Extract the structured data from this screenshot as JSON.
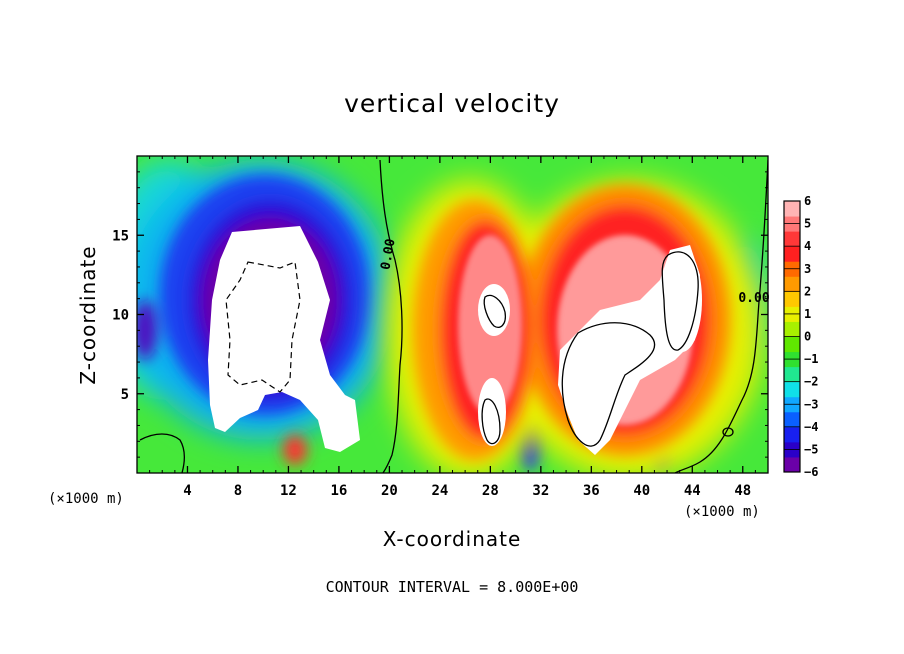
{
  "chart_data": {
    "type": "heatmap",
    "title": "vertical velocity",
    "xlabel": "X-coordinate",
    "ylabel": "Z-coordinate",
    "x_unit_label": "(×1000 m)",
    "x_unit_label_right": "(×1000 m)",
    "footer": "CONTOUR INTERVAL = 8.000E+00",
    "xlim": [
      0,
      50
    ],
    "ylim": [
      0,
      20
    ],
    "x_ticks": [
      4,
      8,
      12,
      16,
      20,
      24,
      28,
      32,
      36,
      40,
      44,
      48
    ],
    "y_ticks": [
      5,
      10,
      15
    ],
    "colorbar": {
      "min": -6,
      "max": 6,
      "ticks": [
        6,
        5,
        4,
        3,
        2,
        1,
        0,
        -1,
        -2,
        -3,
        -4,
        -5,
        -6
      ],
      "tick_labels": [
        "6",
        "5",
        "4",
        "3",
        "2",
        "1",
        "0",
        "−1",
        "−2",
        "−3",
        "−4",
        "−5",
        "−6"
      ],
      "colors": [
        "#6a00a8",
        "#2a00c8",
        "#1820f0",
        "#0a60ff",
        "#10a8ff",
        "#10e0e8",
        "#20e890",
        "#30e030",
        "#60e800",
        "#a8f000",
        "#e8f000",
        "#ffc800",
        "#ff9a00",
        "#ff6a00",
        "#ff2020",
        "#ff3838",
        "#ff7878",
        "#ffb4b4"
      ]
    },
    "contour_labels": [
      "0.00",
      "0.00"
    ],
    "features": [
      {
        "name": "downdraft",
        "x": 11,
        "z": 11,
        "sign": "negative",
        "saturated": true
      },
      {
        "name": "updraft-left",
        "x": 27,
        "z": 10,
        "sign": "positive",
        "saturated": true
      },
      {
        "name": "updraft-right",
        "x": 39,
        "z": 9,
        "sign": "positive",
        "saturated": true
      }
    ]
  }
}
